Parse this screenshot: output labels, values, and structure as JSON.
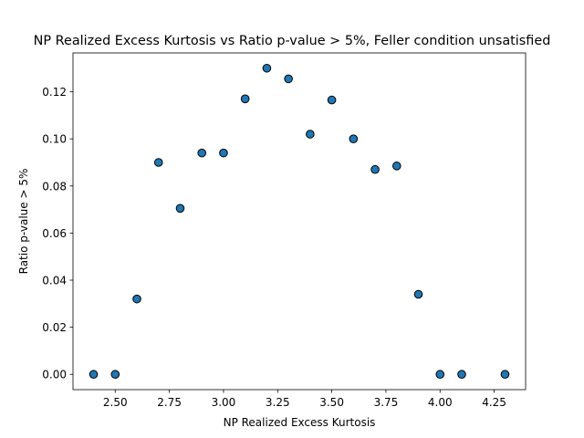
{
  "chart_data": {
    "type": "scatter",
    "title": "NP Realized Excess Kurtosis vs Ratio p-value > 5%, Feller condition unsatisfied",
    "xlabel": "NP Realized Excess Kurtosis",
    "ylabel": "Ratio p-value > 5%",
    "xlim": [
      2.305,
      4.395
    ],
    "ylim": [
      -0.0065,
      0.1365
    ],
    "xticks": [
      "2.50",
      "2.75",
      "3.00",
      "3.25",
      "3.50",
      "3.75",
      "4.00",
      "4.25"
    ],
    "yticks": [
      "0.00",
      "0.02",
      "0.04",
      "0.06",
      "0.08",
      "0.10",
      "0.12"
    ],
    "grid": false,
    "marker_color": "#1f77b4",
    "marker_edge_color": "#000000",
    "x": [
      2.4,
      2.5,
      2.6,
      2.7,
      2.8,
      2.9,
      3.0,
      3.1,
      3.2,
      3.3,
      3.4,
      3.5,
      3.6,
      3.7,
      3.8,
      3.9,
      4.0,
      4.1,
      4.3
    ],
    "y": [
      0.0,
      0.0,
      0.032,
      0.09,
      0.0705,
      0.094,
      0.094,
      0.117,
      0.13,
      0.1255,
      0.102,
      0.1165,
      0.1,
      0.087,
      0.0885,
      0.034,
      0.0,
      0.0,
      0.0
    ]
  }
}
